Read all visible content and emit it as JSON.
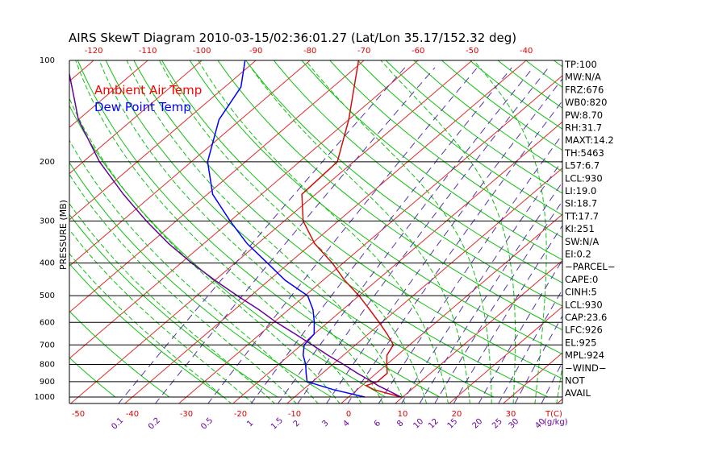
{
  "chart_data": {
    "type": "line",
    "title": "AIRS SkewT Diagram 2010-03-15/02:36:01.27 (Lat/Lon 35.17/152.32 deg)",
    "ylabel": "PRESSURE (MB)",
    "pressure_ticks": [
      "100",
      "200",
      "300",
      "400",
      "500",
      "600",
      "700",
      "800",
      "900",
      "1000"
    ],
    "pressure_values": [
      100,
      200,
      300,
      400,
      500,
      600,
      700,
      800,
      900,
      1000
    ],
    "temp_ticks_bottom": [
      "-50",
      "-40",
      "-30",
      "-20",
      "-10",
      "0",
      "10",
      "20",
      "30"
    ],
    "temp_values_bottom": [
      -50,
      -40,
      -30,
      -20,
      -10,
      0,
      10,
      20,
      30
    ],
    "bottom_axis_label": "T(C)",
    "temp_ticks_top": [
      "-120",
      "-110",
      "-100",
      "-90",
      "-80",
      "-70",
      "-60",
      "-50",
      "-40"
    ],
    "temp_values_top": [
      -120,
      -110,
      -100,
      -90,
      -80,
      -70,
      -60,
      -50,
      -40
    ],
    "mixing_ratio_ticks": [
      "0.1",
      "0.2",
      "0.5",
      "1",
      "1.5",
      "2",
      "3",
      "4",
      "6",
      "8",
      "10",
      "12",
      "15",
      "20",
      "25",
      "30",
      "40"
    ],
    "mixing_ratio_label": "(g/kg)",
    "legend": [
      {
        "label": "Ambient Air Temp",
        "color": "#ff0000"
      },
      {
        "label": "Dew Point Temp",
        "color": "#0000ff"
      }
    ],
    "series": [
      {
        "name": "Ambient Air Temp",
        "color": "#d01010",
        "points": [
          {
            "p": 1000,
            "t": 9.7
          },
          {
            "p": 950,
            "t": 3.0
          },
          {
            "p": 925,
            "t": 0.8
          },
          {
            "p": 900,
            "t": 2.0
          },
          {
            "p": 850,
            "t": 2.0
          },
          {
            "p": 800,
            "t": 0.0
          },
          {
            "p": 750,
            "t": -2.0
          },
          {
            "p": 700,
            "t": -3.0
          },
          {
            "p": 650,
            "t": -6.5
          },
          {
            "p": 600,
            "t": -10.5
          },
          {
            "p": 550,
            "t": -15.0
          },
          {
            "p": 500,
            "t": -20.0
          },
          {
            "p": 450,
            "t": -26.0
          },
          {
            "p": 400,
            "t": -32.0
          },
          {
            "p": 350,
            "t": -39.5
          },
          {
            "p": 300,
            "t": -46.5
          },
          {
            "p": 250,
            "t": -52.5
          },
          {
            "p": 200,
            "t": -53.0
          },
          {
            "p": 150,
            "t": -60.0
          },
          {
            "p": 100,
            "t": -71.0
          }
        ]
      },
      {
        "name": "Dew Point Temp",
        "color": "#0000ff",
        "points": [
          {
            "p": 1000,
            "t": 3.0
          },
          {
            "p": 950,
            "t": -4.5
          },
          {
            "p": 900,
            "t": -11.0
          },
          {
            "p": 850,
            "t": -13.0
          },
          {
            "p": 800,
            "t": -15.0
          },
          {
            "p": 750,
            "t": -17.5
          },
          {
            "p": 700,
            "t": -19.5
          },
          {
            "p": 650,
            "t": -20.0
          },
          {
            "p": 600,
            "t": -22.5
          },
          {
            "p": 550,
            "t": -25.5
          },
          {
            "p": 500,
            "t": -29.5
          },
          {
            "p": 450,
            "t": -37.0
          },
          {
            "p": 400,
            "t": -44.0
          },
          {
            "p": 350,
            "t": -52.0
          },
          {
            "p": 300,
            "t": -60.0
          },
          {
            "p": 250,
            "t": -69.0
          },
          {
            "p": 200,
            "t": -77.0
          },
          {
            "p": 150,
            "t": -84.0
          },
          {
            "p": 120,
            "t": -87.0
          },
          {
            "p": 100,
            "t": -92.0
          }
        ]
      },
      {
        "name": "Parcel",
        "color": "#660099",
        "points": [
          {
            "p": 1000,
            "t": 9.7
          },
          {
            "p": 950,
            "t": 5.3
          },
          {
            "p": 925,
            "t": 3.0
          },
          {
            "p": 900,
            "t": 1.0
          },
          {
            "p": 850,
            "t": -3.5
          },
          {
            "p": 800,
            "t": -8.0
          },
          {
            "p": 750,
            "t": -13.0
          },
          {
            "p": 700,
            "t": -18.0
          },
          {
            "p": 650,
            "t": -23.5
          },
          {
            "p": 600,
            "t": -29.5
          },
          {
            "p": 550,
            "t": -35.5
          },
          {
            "p": 500,
            "t": -42.5
          },
          {
            "p": 450,
            "t": -50.0
          },
          {
            "p": 400,
            "t": -58.0
          },
          {
            "p": 350,
            "t": -66.5
          },
          {
            "p": 300,
            "t": -75.5
          },
          {
            "p": 250,
            "t": -85.5
          },
          {
            "p": 200,
            "t": -97.0
          },
          {
            "p": 150,
            "t": -110.0
          },
          {
            "p": 100,
            "t": -125.0
          }
        ]
      }
    ],
    "grid": true
  },
  "side_panel": {
    "lines": [
      "TP:100",
      "MW:N/A",
      "FRZ:676",
      "WB0:820",
      "PW:8.70",
      "RH:31.7",
      "MAXT:14.2",
      "TH:5463",
      "L57:6.7",
      "LCL:930",
      "LI:19.0",
      "SI:18.7",
      "TT:17.7",
      "KI:251",
      "SW:N/A",
      "EI:0.2",
      "−PARCEL−",
      "CAPE:0",
      "CINH:5",
      "LCL:930",
      "CAP:23.6",
      "LFC:926",
      "EL:925",
      "MPL:924",
      "−WIND−",
      "NOT",
      "AVAIL"
    ]
  },
  "colors": {
    "isotherm": "#e03030",
    "dry_adiabat": "#10c010",
    "moist_adiabat": "#10c010",
    "mixing_ratio": "#5533aa",
    "isobar": "#000000",
    "tick_red": "#dd0000",
    "tick_purple": "#660099"
  }
}
